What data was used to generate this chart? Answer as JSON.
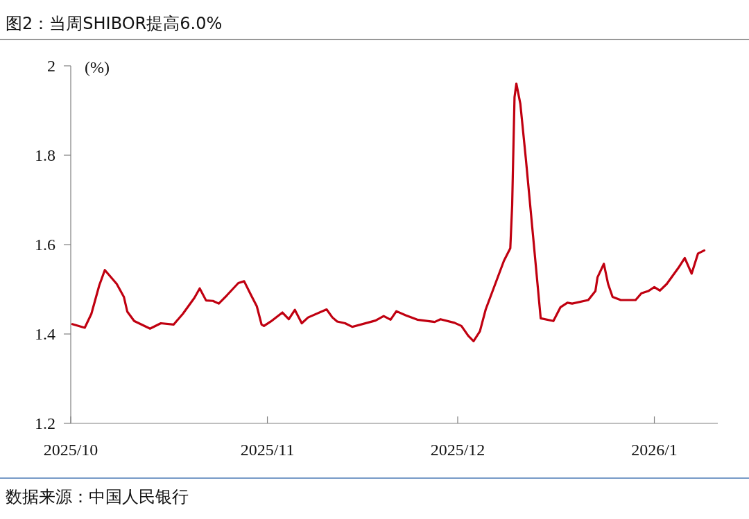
{
  "chart_data": {
    "type": "line",
    "title": "图2：当周SHIBOR提高6.0%",
    "ylabel": "(%)",
    "annotations": [
      "数据来源：中国人民银行"
    ],
    "x": [
      "2025-10-01T06:00",
      "2025-10-03T05:00",
      "2025-10-04T06:00",
      "2025-10-05T12:00",
      "2025-10-06T09:00",
      "2025-10-08T06:00",
      "2025-10-09T09:00",
      "2025-10-09T22:00",
      "2025-10-11T00:00",
      "2025-10-13T12:00",
      "2025-10-15T05:00",
      "2025-10-17T05:00",
      "2025-10-18T16:00",
      "2025-10-20T12:00",
      "2025-10-21T08:00",
      "2025-10-22T08:00",
      "2025-10-23T10:00",
      "2025-10-24T08:00",
      "2025-10-25T14:00",
      "2025-10-27T10:00",
      "2025-10-28T08:00",
      "2025-10-29T11:00",
      "2025-10-30T08:00",
      "2025-10-31T02:00",
      "2025-10-31T11:00",
      "2025-11-01T13:00",
      "2025-11-03T09:00",
      "2025-11-04T09:00",
      "2025-11-05T08:00",
      "2025-11-06T10:00",
      "2025-11-07T10:00",
      "2025-11-10T08:00",
      "2025-11-11T06:00",
      "2025-11-12T00:00",
      "2025-11-13T06:00",
      "2025-11-14T09:00",
      "2025-11-18T01:00",
      "2025-11-19T08:00",
      "2025-11-20T10:00",
      "2025-11-21T08:00",
      "2025-11-22T19:00",
      "2025-11-24T15:00",
      "2025-11-27T09:00",
      "2025-11-28T07:00",
      "2025-11-30T12:00",
      "2025-12-01T14:00",
      "2025-12-02T16:00",
      "2025-12-03T12:00",
      "2025-12-04T12:00",
      "2025-12-05T10:00",
      "2025-12-08T07:00",
      "2025-12-09T07:00",
      "2025-12-09T14:00",
      "2025-12-09T23:00",
      "2025-12-10T06:00",
      "2025-12-10T21:00",
      "2025-12-11T18:00",
      "2025-12-12T21:00",
      "2025-12-14T02:00",
      "2025-12-16T02:00",
      "2025-12-17T05:00",
      "2025-12-18T07:00",
      "2025-12-19T01:00",
      "2025-12-21T14:00",
      "2025-12-22T17:00",
      "2025-12-23T01:00",
      "2025-12-24T01:00",
      "2025-12-24T17:00",
      "2025-12-25T10:00",
      "2025-12-26T17:00",
      "2025-12-29T01:00",
      "2025-12-29T23:00",
      "2025-12-31T01:00",
      "2026-01-01T00:00",
      "2026-01-01T21:00",
      "2026-01-02T23:00",
      "2026-01-04T19:00",
      "2026-01-05T19:00",
      "2026-01-06T21:00",
      "2026-01-07T21:00",
      "2026-01-08T21:00"
    ],
    "series": [
      {
        "color": "#c00010",
        "values": [
          1.422,
          1.414,
          1.445,
          1.509,
          1.543,
          1.512,
          1.483,
          1.45,
          1.429,
          1.412,
          1.424,
          1.421,
          1.445,
          1.481,
          1.502,
          1.475,
          1.474,
          1.468,
          1.486,
          1.514,
          1.518,
          1.486,
          1.462,
          1.421,
          1.418,
          1.428,
          1.448,
          1.433,
          1.454,
          1.424,
          1.437,
          1.455,
          1.437,
          1.428,
          1.424,
          1.416,
          1.43,
          1.44,
          1.432,
          1.451,
          1.442,
          1.432,
          1.427,
          1.433,
          1.425,
          1.418,
          1.396,
          1.384,
          1.406,
          1.455,
          1.564,
          1.592,
          1.687,
          1.93,
          1.96,
          1.915,
          1.791,
          1.62,
          1.435,
          1.429,
          1.46,
          1.47,
          1.468,
          1.476,
          1.496,
          1.527,
          1.557,
          1.512,
          1.483,
          1.476,
          1.476,
          1.491,
          1.496,
          1.505,
          1.497,
          1.512,
          1.548,
          1.57,
          1.535,
          1.58,
          1.587
        ]
      }
    ],
    "xlim": [
      "2025-10-01",
      "2026-01-11"
    ],
    "xticks": [
      {
        "value": "2025-10-01",
        "label": "2025/10"
      },
      {
        "value": "2025-11-01",
        "label": "2025/11"
      },
      {
        "value": "2025-12-01",
        "label": "2025/12"
      },
      {
        "value": "2026-01-01",
        "label": "2026/1"
      }
    ],
    "ylim": [
      1.2,
      2
    ],
    "yticks": [
      1.2,
      1.4,
      1.6,
      1.8,
      2
    ]
  }
}
